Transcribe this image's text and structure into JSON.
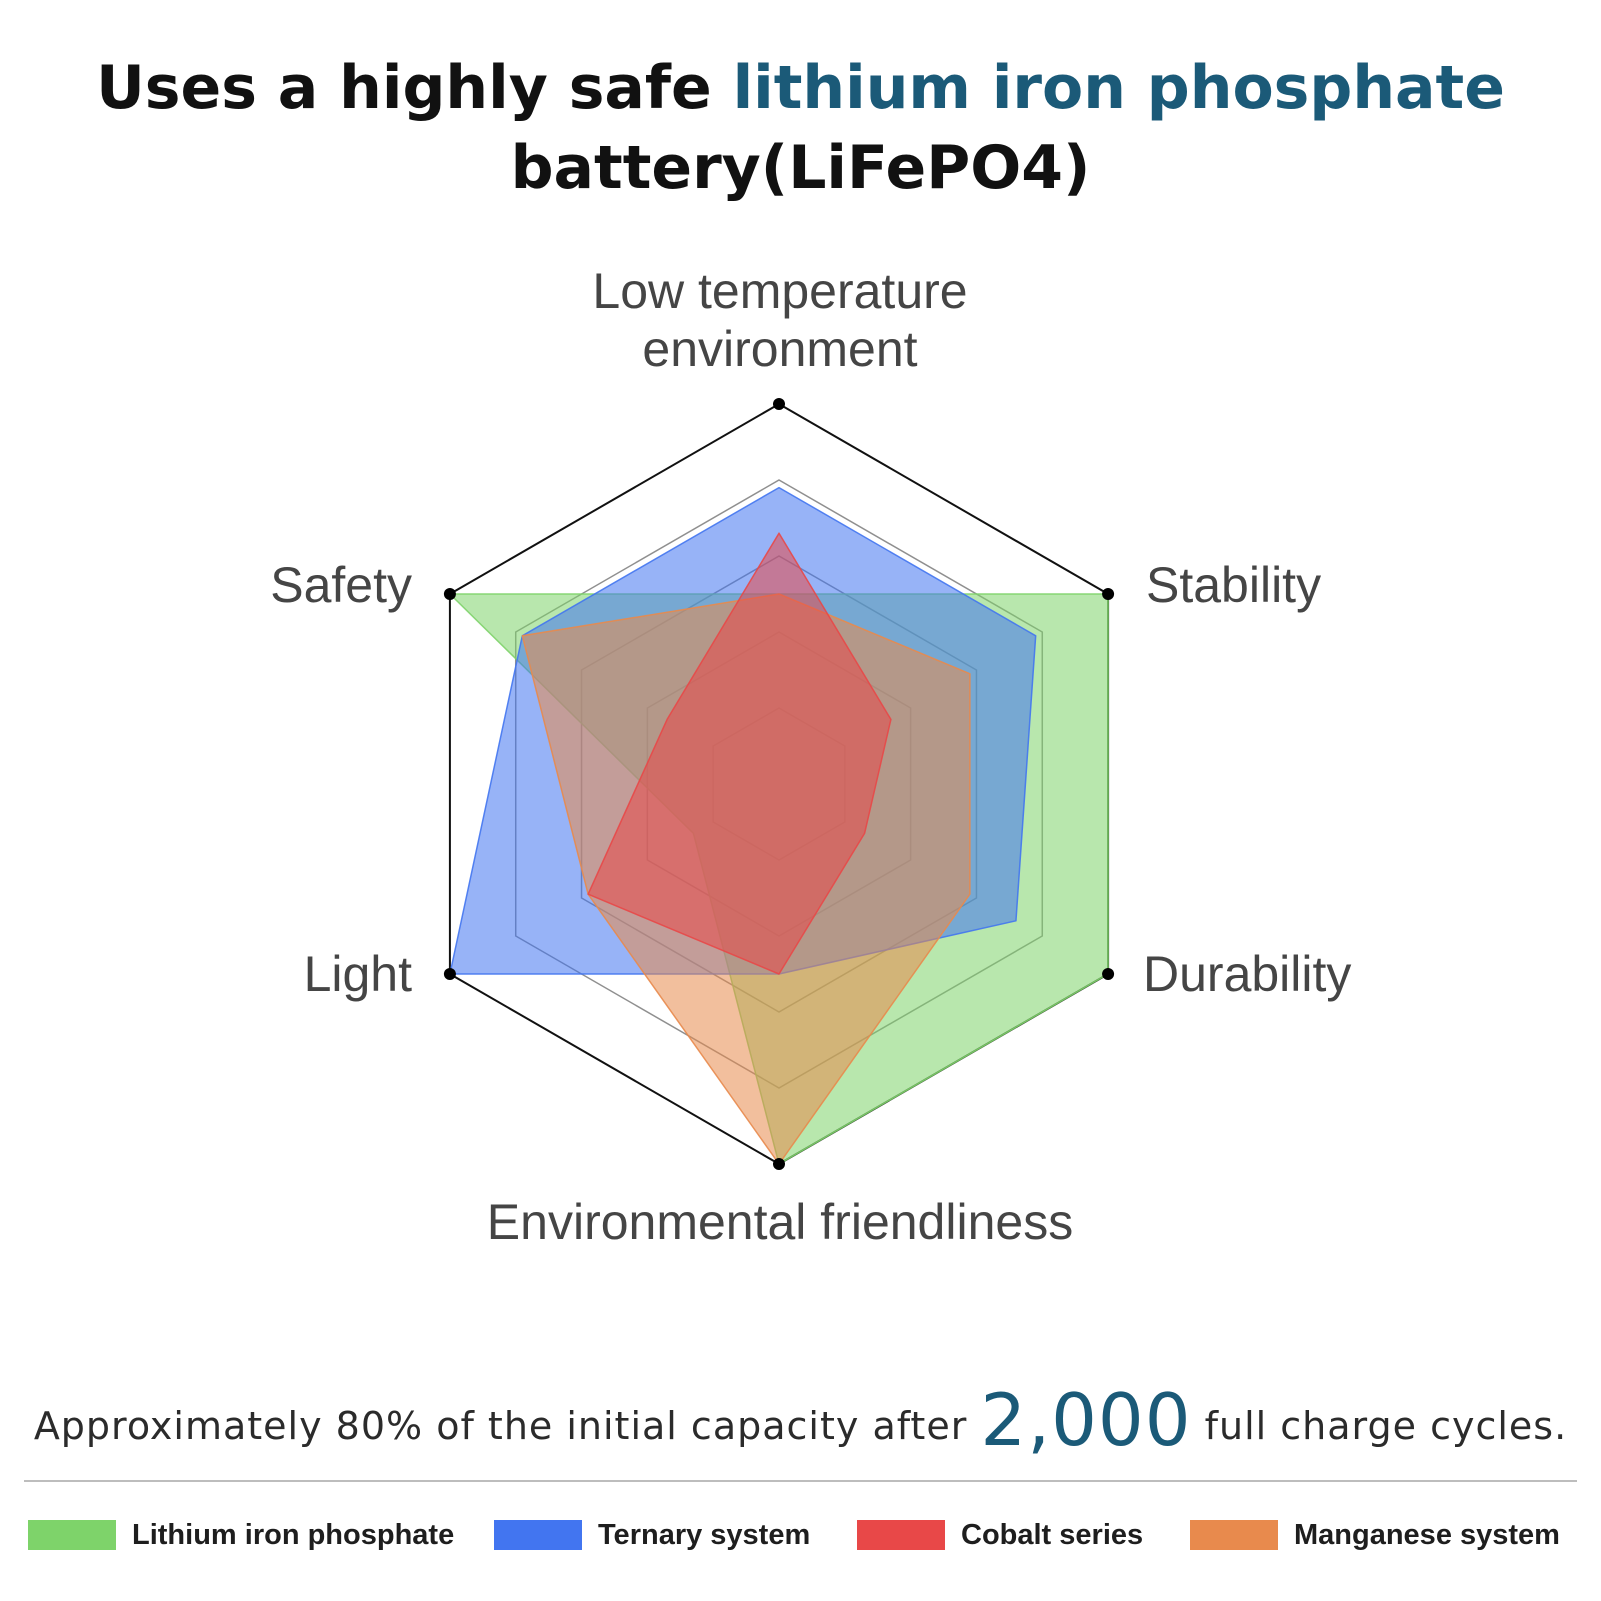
{
  "title": {
    "line1_prefix": "Uses a highly safe ",
    "line1_highlight": "lithium iron phosphate",
    "line2": "battery(LiFePO4)"
  },
  "chart_data": {
    "type": "radar",
    "axes": [
      "Low temperature environment",
      "Stability",
      "Durability",
      "Environmental friendliness",
      "Light",
      "Safety"
    ],
    "scale_max": 5,
    "grid_levels": [
      1,
      2,
      3,
      4,
      5
    ],
    "series": [
      {
        "name": "Lithium iron phosphate",
        "color": "#7ed36a",
        "values": [
          2.5,
          5,
          5,
          5,
          1.3,
          5
        ]
      },
      {
        "name": "Ternary system",
        "color": "#4275f0",
        "values": [
          3.9,
          3.9,
          3.6,
          2.5,
          5,
          3.9
        ]
      },
      {
        "name": "Manganese system",
        "color": "#e88a4d",
        "values": [
          2.5,
          2.9,
          2.9,
          5,
          2.9,
          3.9
        ]
      },
      {
        "name": "Cobalt series",
        "color": "#e84848",
        "values": [
          3.3,
          1.7,
          1.3,
          2.5,
          2.9,
          1.7
        ]
      }
    ]
  },
  "axis_labels": {
    "low_temp_line1": "Low temperature",
    "low_temp_line2": "environment",
    "stability": "Stability",
    "durability": "Durability",
    "environmental": "Environmental friendliness",
    "light": "Light",
    "safety": "Safety"
  },
  "subtitle": {
    "prefix": "Approximately 80% of the initial capacity after ",
    "number": "2,000",
    "suffix": " full charge cycles."
  },
  "legend": [
    {
      "label": "Lithium iron phosphate",
      "color": "#7ed36a"
    },
    {
      "label": "Ternary system",
      "color": "#4275f0"
    },
    {
      "label": "Cobalt series",
      "color": "#e84848"
    },
    {
      "label": "Manganese system",
      "color": "#e88a4d"
    }
  ]
}
